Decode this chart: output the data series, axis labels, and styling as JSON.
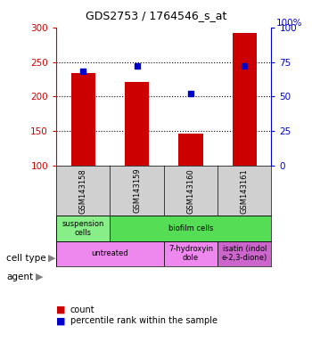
{
  "title": "GDS2753 / 1764546_s_at",
  "samples": [
    "GSM143158",
    "GSM143159",
    "GSM143160",
    "GSM143161"
  ],
  "count_values": [
    234,
    221,
    146,
    292
  ],
  "percentile_values": [
    68,
    72,
    52,
    72
  ],
  "ylim_left": [
    100,
    300
  ],
  "ylim_right": [
    0,
    100
  ],
  "bar_color": "#cc0000",
  "marker_color": "#0000cc",
  "cell_types": [
    {
      "label": "suspension\ncells",
      "span": [
        0,
        1
      ],
      "color": "#88ee88"
    },
    {
      "label": "biofilm cells",
      "span": [
        1,
        4
      ],
      "color": "#55dd55"
    }
  ],
  "agents": [
    {
      "label": "untreated",
      "span": [
        0,
        2
      ],
      "color": "#ee88ee"
    },
    {
      "label": "7-hydroxyin\ndole",
      "span": [
        2,
        3
      ],
      "color": "#ee88ee"
    },
    {
      "label": "isatin (indol\ne-2,3-dione)",
      "span": [
        3,
        4
      ],
      "color": "#cc66cc"
    }
  ],
  "left_yticks": [
    100,
    150,
    200,
    250,
    300
  ],
  "right_yticks": [
    0,
    25,
    50,
    75,
    100
  ],
  "left_tick_color": "#cc0000",
  "right_tick_color": "#0000cc",
  "sample_bg_color": "#d0d0d0",
  "plot_bg_color": "#ffffff",
  "legend_red_label": "count",
  "legend_blue_label": "percentile rank within the sample",
  "cell_type_label": "cell type",
  "agent_label": "agent"
}
